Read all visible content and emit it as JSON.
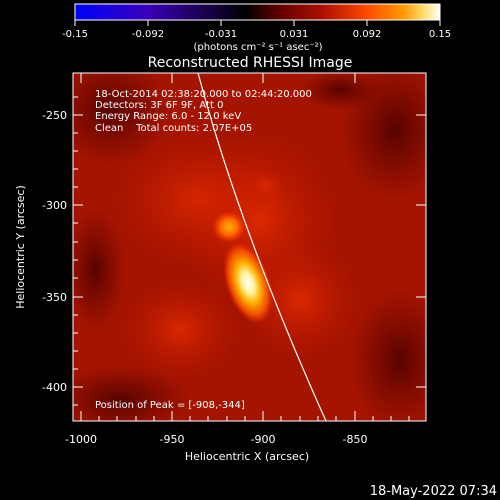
{
  "colorbar": {
    "ticks": [
      "-0.15",
      "-0.092",
      "-0.031",
      "0.031",
      "0.092",
      "0.15"
    ],
    "unit_label": "(photons cm⁻² s⁻¹ asec⁻²)",
    "colormap": [
      "#0000ff",
      "#3a00b8",
      "#000000",
      "#5a0000",
      "#b01000",
      "#ff4a00",
      "#ff9a00",
      "#ffe27a",
      "#ffffff"
    ]
  },
  "plot": {
    "title": "Reconstructed RHESSI Image",
    "xlabel": "Heliocentric X (arcsec)",
    "ylabel": "Heliocentric Y (arcsec)",
    "x_ticks": [
      "-1000",
      "-950",
      "-900",
      "-850"
    ],
    "y_ticks": [
      "-250",
      "-300",
      "-350",
      "-400"
    ],
    "info": {
      "line1": "18-Oct-2014 02:38:20.000 to 02:44:20.000",
      "line2": "Detectors: 3F 6F 9F, Att 0",
      "line3": "Energy Range: 6.0 - 12.0 keV",
      "line4": "Clean    Total counts: 2.07E+05"
    },
    "peak_text": "Position of Peak = [-908,-344]"
  },
  "footer": {
    "timestamp": "18-May-2022 07:34"
  }
}
